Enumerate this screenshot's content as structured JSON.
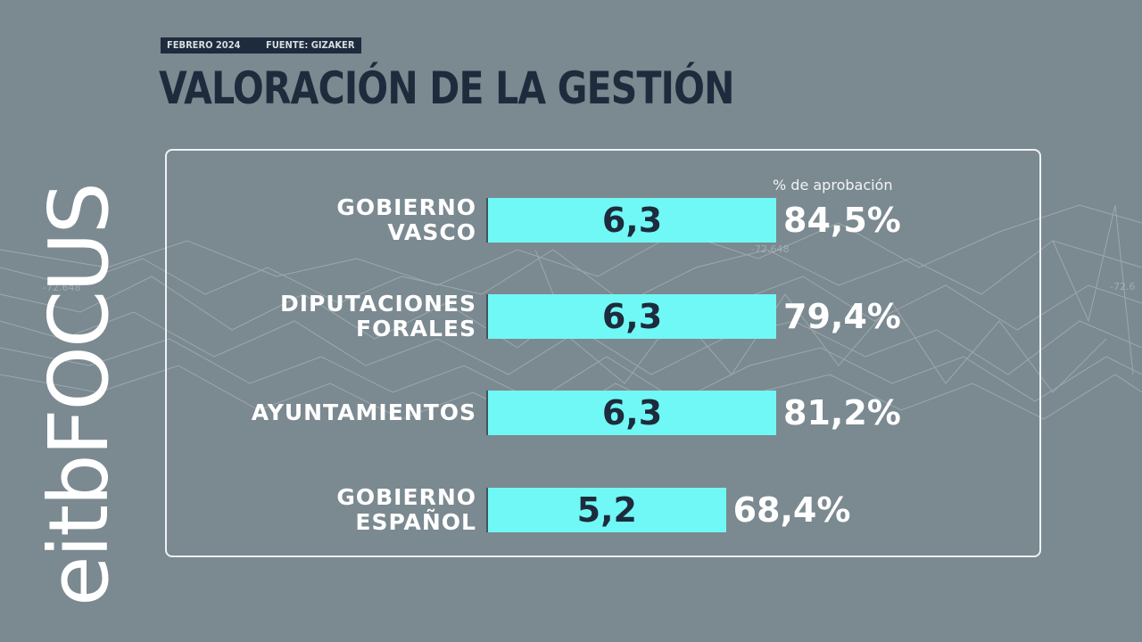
{
  "header": {
    "date": "FEBRERO 2024",
    "source": "FUENTE: GIZAKER",
    "title": "VALORACIÓN DE LA GESTIÓN"
  },
  "brand": {
    "logo_text": "eitbFOCUS"
  },
  "colors": {
    "background": "#7b8990",
    "bar": "#6ff8f6",
    "dark_text": "#1d2b3c"
  },
  "chart_data": {
    "type": "bar",
    "orientation": "horizontal",
    "column_header": "% de aprobación",
    "categories": [
      [
        "GOBIERNO",
        "VASCO"
      ],
      [
        "DIPUTACIONES",
        "FORALES"
      ],
      [
        "AYUNTAMIENTOS"
      ],
      [
        "GOBIERNO",
        "ESPAÑOL"
      ]
    ],
    "values": [
      6.3,
      6.3,
      6.3,
      5.2
    ],
    "value_labels": [
      "6,3",
      "6,3",
      "6,3",
      "5,2"
    ],
    "approval": [
      "84,5%",
      "79,4%",
      "81,2%",
      "68,4%"
    ],
    "xlim": [
      0,
      10
    ]
  }
}
